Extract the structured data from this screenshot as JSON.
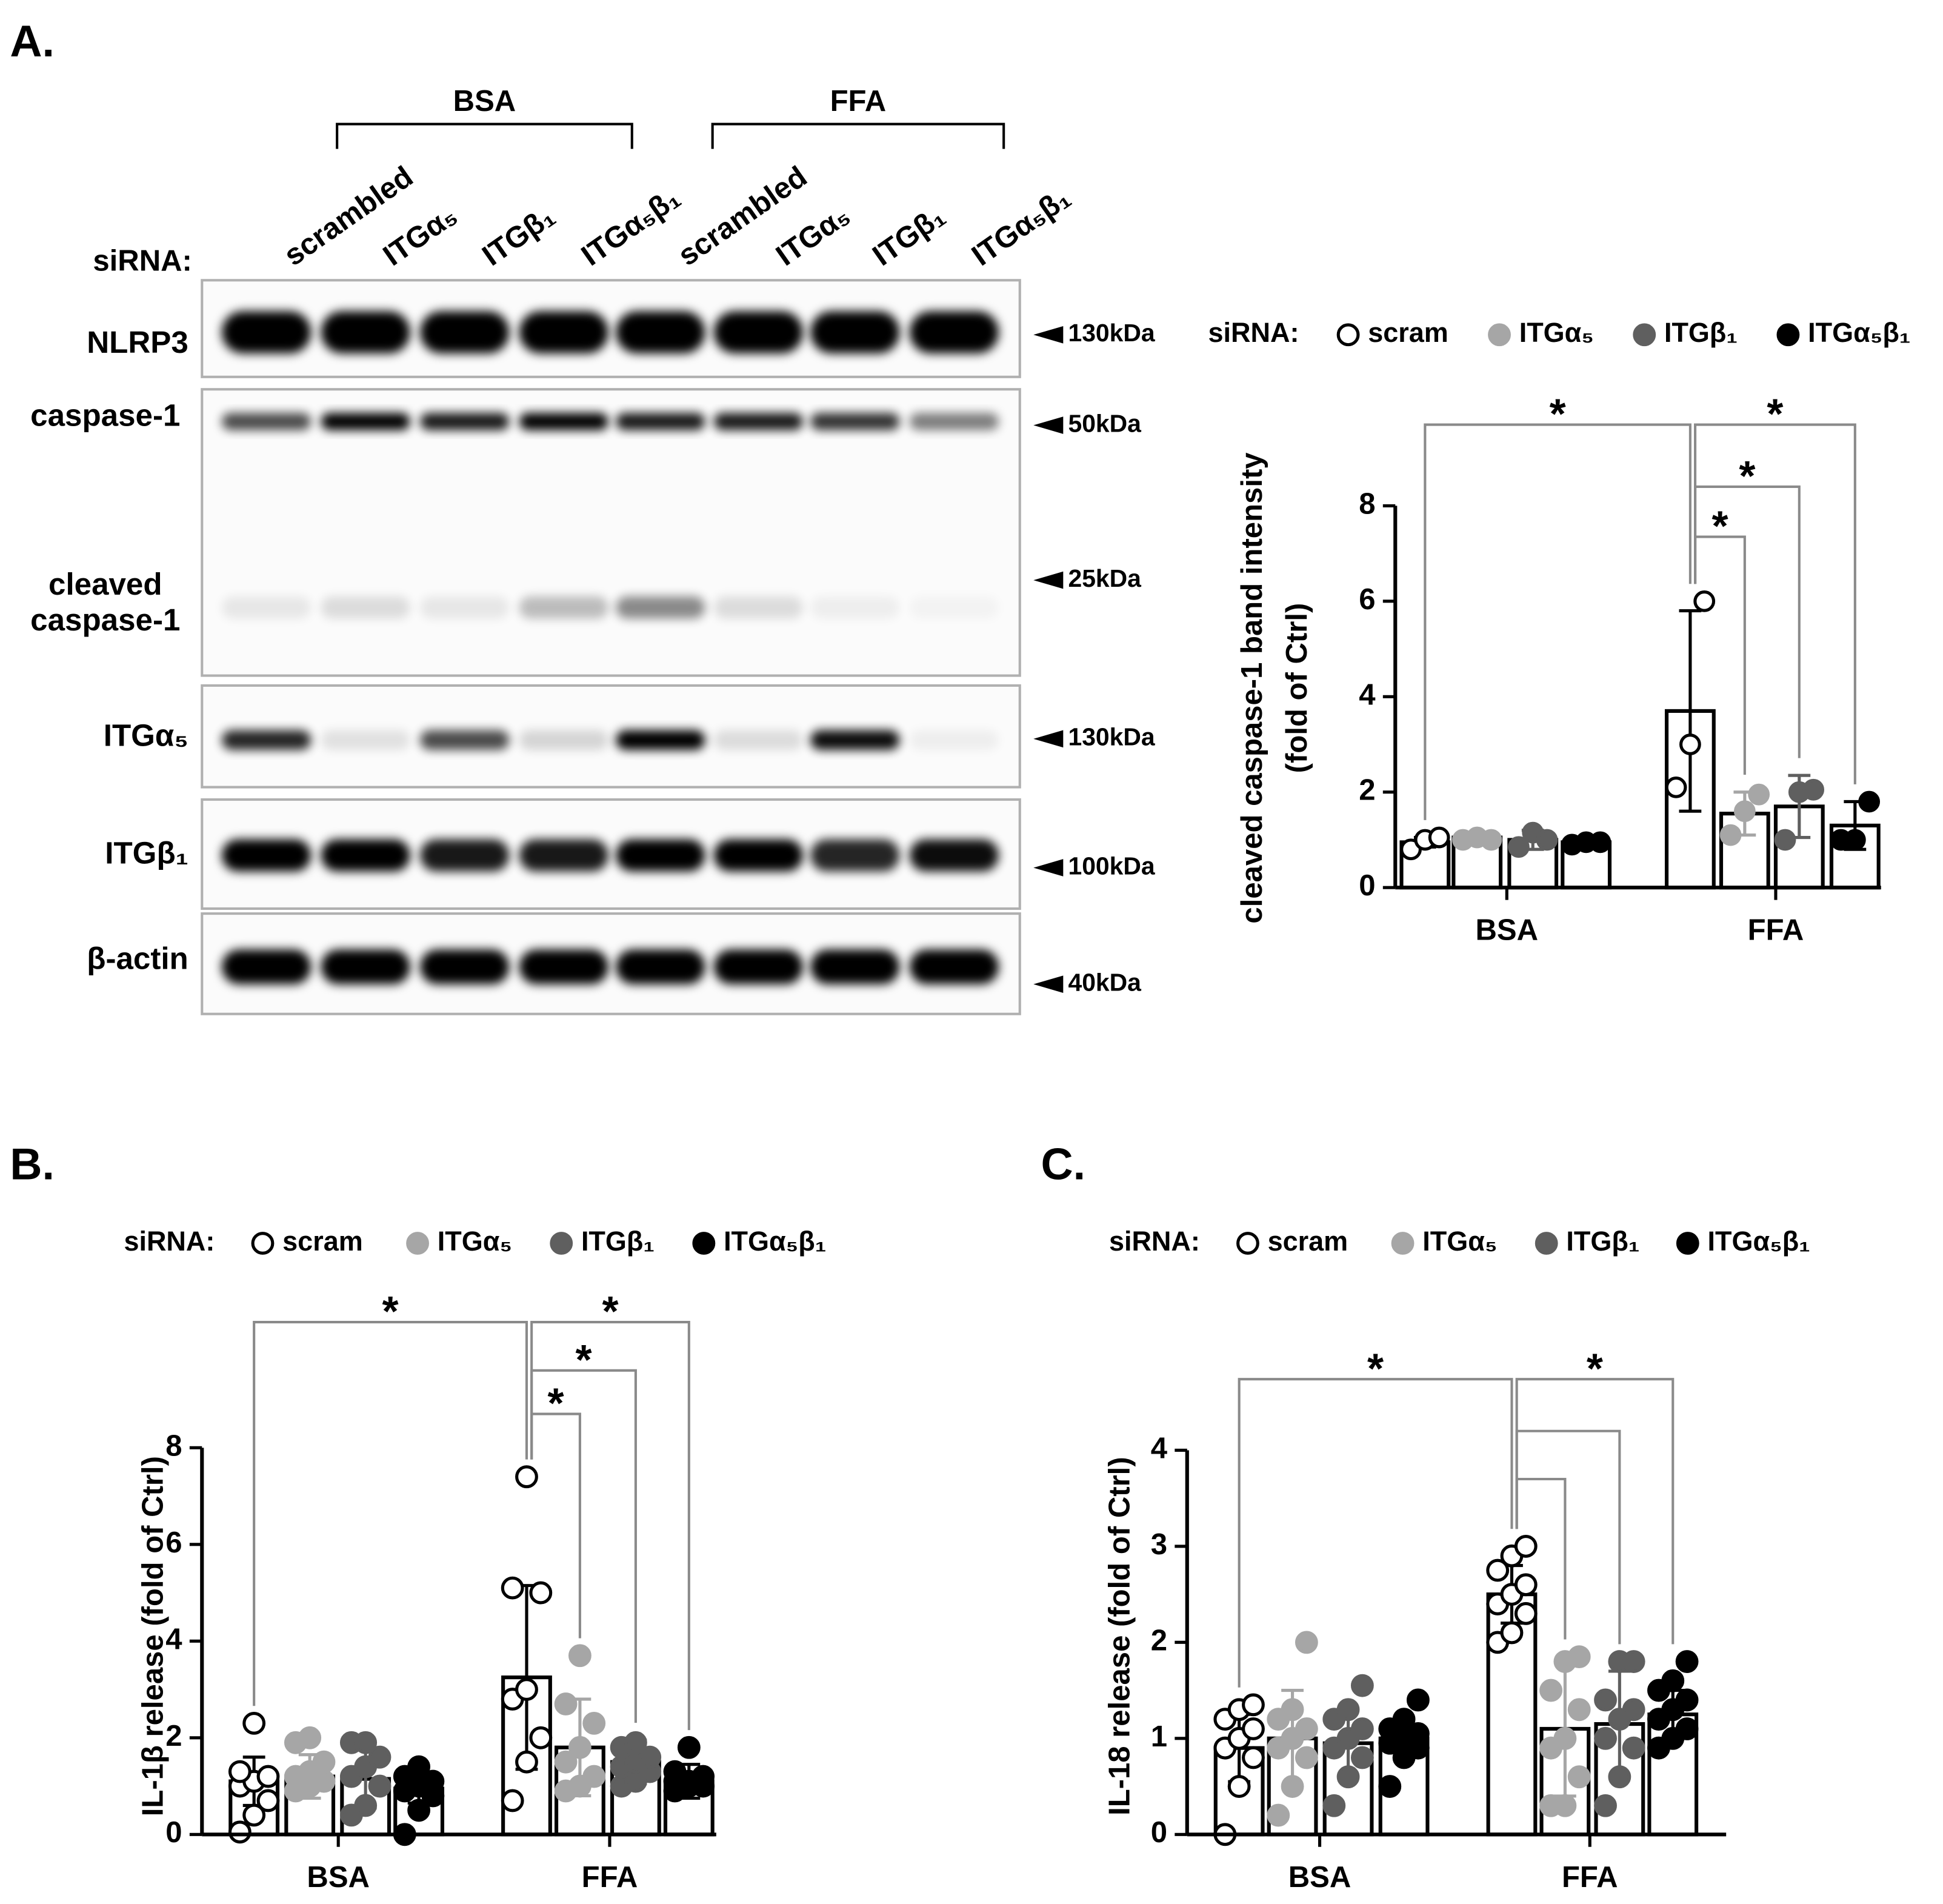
{
  "panels": [
    "A.",
    "B.",
    "C."
  ],
  "blot": {
    "lanes_label": "siRNA:",
    "groups": [
      "BSA",
      "FFA"
    ],
    "lanes": [
      "scrambled",
      "ITGα₅",
      "ITGβ₁",
      "ITGα₅β₁",
      "scrambled",
      "ITGα₅",
      "ITGβ₁",
      "ITGα₅β₁"
    ],
    "rows": [
      {
        "labels": [
          "NLRP3"
        ],
        "markers": [
          "130kDa"
        ]
      },
      {
        "labels": [
          "caspase-1",
          "cleaved",
          "caspase-1"
        ],
        "markers": [
          "50kDa",
          "25kDa"
        ]
      },
      {
        "labels": [
          "ITGα₅"
        ],
        "markers": [
          "130kDa"
        ]
      },
      {
        "labels": [
          "ITGβ₁"
        ],
        "markers": [
          "100kDa"
        ]
      },
      {
        "labels": [
          "β-actin"
        ],
        "markers": [
          "40kDa"
        ]
      }
    ]
  },
  "chart_data": [
    {
      "type": "bar",
      "legend_title": "siRNA:",
      "ylabel": [
        "cleaved caspase-1 band intensity",
        "(fold of Ctrl)"
      ],
      "categories": [
        "BSA",
        "FFA"
      ],
      "ylim": [
        0,
        8
      ],
      "yticks": [
        0,
        2,
        4,
        6,
        8
      ],
      "annotations": [
        "*",
        "*",
        "*",
        "*"
      ],
      "series": [
        {
          "name": "scram",
          "color": "#ffffff",
          "values": [
            0.95,
            3.7
          ],
          "errors": [
            0.1,
            2.1
          ],
          "points": [
            [
              0.8,
              1.0,
              1.05
            ],
            [
              2.1,
              3.0,
              6.0
            ]
          ]
        },
        {
          "name": "ITGα₅",
          "color": "#a6a6a6",
          "values": [
            1.05,
            1.55
          ],
          "errors": [
            0.05,
            0.45
          ],
          "points": [
            [
              1.0,
              1.05,
              1.0
            ],
            [
              1.1,
              1.6,
              1.95
            ]
          ]
        },
        {
          "name": "ITGβ₁",
          "color": "#5f5f5f",
          "values": [
            1.0,
            1.7
          ],
          "errors": [
            0.2,
            0.65
          ],
          "points": [
            [
              0.85,
              1.15,
              1.0
            ],
            [
              1.0,
              2.0,
              2.05
            ]
          ]
        },
        {
          "name": "ITGα₅β₁",
          "color": "#000000",
          "values": [
            0.95,
            1.3
          ],
          "errors": [
            0.05,
            0.5
          ],
          "points": [
            [
              0.9,
              0.95,
              0.95
            ],
            [
              1.0,
              1.0,
              1.8
            ]
          ]
        }
      ]
    },
    {
      "type": "bar",
      "legend_title": "siRNA:",
      "ylabel": [
        "IL-1β release (fold of Ctrl)"
      ],
      "categories": [
        "BSA",
        "FFA"
      ],
      "ylim": [
        0,
        8
      ],
      "yticks": [
        0,
        2,
        4,
        6,
        8
      ],
      "annotations": [
        "*",
        "*",
        "*",
        "*"
      ],
      "series": [
        {
          "name": "scram",
          "color": "#ffffff",
          "values": [
            1.1,
            3.25
          ],
          "errors": [
            0.5,
            1.9
          ],
          "points": [
            [
              0.05,
              0.4,
              0.7,
              1.0,
              1.1,
              1.2,
              1.3,
              2.3
            ],
            [
              0.7,
              1.5,
              2.0,
              2.8,
              3.0,
              5.0,
              5.1,
              7.4
            ]
          ]
        },
        {
          "name": "ITGα₅",
          "color": "#a6a6a6",
          "values": [
            1.2,
            1.8
          ],
          "errors": [
            0.45,
            1.0
          ],
          "points": [
            [
              0.9,
              1.0,
              1.1,
              1.2,
              1.3,
              1.5,
              1.9,
              2.0
            ],
            [
              0.9,
              1.0,
              1.2,
              1.5,
              1.8,
              2.3,
              2.7,
              3.7
            ]
          ]
        },
        {
          "name": "ITGβ₁",
          "color": "#5f5f5f",
          "values": [
            1.15,
            1.5
          ],
          "errors": [
            0.6,
            0.45
          ],
          "points": [
            [
              0.4,
              0.6,
              1.0,
              1.2,
              1.4,
              1.6,
              1.9,
              1.9
            ],
            [
              1.0,
              1.1,
              1.3,
              1.4,
              1.5,
              1.6,
              1.8,
              1.9
            ]
          ]
        },
        {
          "name": "ITGα₅β₁",
          "color": "#000000",
          "values": [
            0.95,
            1.1
          ],
          "errors": [
            0.3,
            0.35
          ],
          "points": [
            [
              0.0,
              0.5,
              0.8,
              0.9,
              1.0,
              1.1,
              1.2,
              1.4
            ],
            [
              0.9,
              1.0,
              1.0,
              1.1,
              1.1,
              1.2,
              1.3,
              1.8
            ]
          ]
        }
      ]
    },
    {
      "type": "bar",
      "legend_title": "siRNA:",
      "ylabel": [
        "IL-18 release (fold of Ctrl)"
      ],
      "categories": [
        "BSA",
        "FFA"
      ],
      "ylim": [
        0,
        4
      ],
      "yticks": [
        0,
        1,
        2,
        3,
        4
      ],
      "annotations": [
        "*",
        "*"
      ],
      "series": [
        {
          "name": "scram",
          "color": "#ffffff",
          "values": [
            0.9,
            2.5
          ],
          "errors": [
            0.35,
            0.3
          ],
          "points": [
            [
              0.0,
              0.5,
              0.8,
              0.9,
              1.0,
              1.1,
              1.2,
              1.3,
              1.35
            ],
            [
              2.0,
              2.1,
              2.3,
              2.4,
              2.5,
              2.6,
              2.75,
              2.9,
              3.0
            ]
          ]
        },
        {
          "name": "ITGα₅",
          "color": "#a6a6a6",
          "values": [
            1.0,
            1.1
          ],
          "errors": [
            0.5,
            0.7
          ],
          "points": [
            [
              0.2,
              0.5,
              0.8,
              0.9,
              1.0,
              1.1,
              1.2,
              1.3,
              2.0
            ],
            [
              0.3,
              0.3,
              0.6,
              0.9,
              1.0,
              1.3,
              1.5,
              1.8,
              1.85
            ]
          ]
        },
        {
          "name": "ITGβ₁",
          "color": "#5f5f5f",
          "values": [
            0.95,
            1.15
          ],
          "errors": [
            0.35,
            0.55
          ],
          "points": [
            [
              0.3,
              0.6,
              0.8,
              0.9,
              1.0,
              1.1,
              1.2,
              1.3,
              1.55
            ],
            [
              0.3,
              0.6,
              0.9,
              1.0,
              1.2,
              1.3,
              1.4,
              1.8,
              1.8
            ]
          ]
        },
        {
          "name": "ITGα₅β₁",
          "color": "#000000",
          "values": [
            1.0,
            1.25
          ],
          "errors": [
            0.2,
            0.25
          ],
          "points": [
            [
              0.5,
              0.8,
              0.9,
              0.95,
              1.0,
              1.05,
              1.1,
              1.2,
              1.4
            ],
            [
              0.9,
              1.0,
              1.1,
              1.2,
              1.3,
              1.4,
              1.5,
              1.6,
              1.8
            ]
          ]
        }
      ]
    }
  ]
}
